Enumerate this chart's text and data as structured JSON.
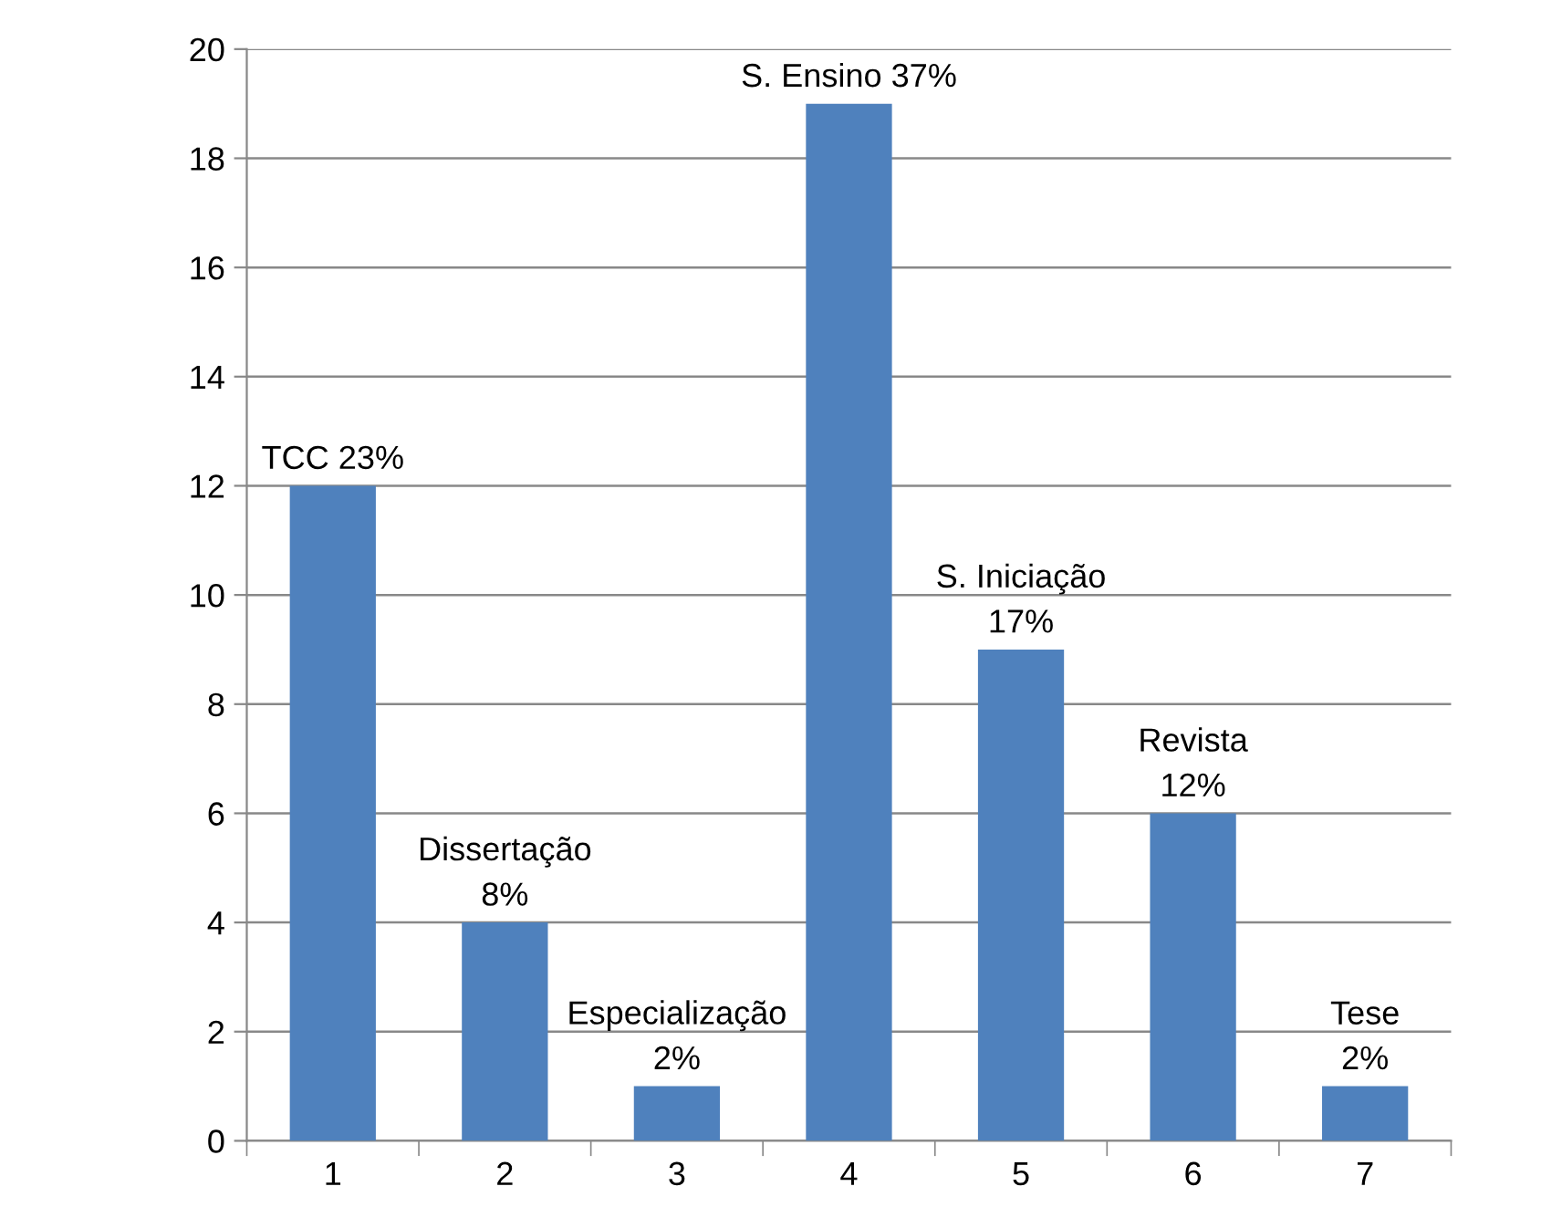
{
  "chart_data": {
    "type": "bar",
    "categories": [
      "1",
      "2",
      "3",
      "4",
      "5",
      "6",
      "7"
    ],
    "values": [
      12,
      4,
      1,
      19,
      9,
      6,
      1
    ],
    "color": "#4f81bd",
    "ylim": [
      0,
      20
    ],
    "yticks": [
      0,
      2,
      4,
      6,
      8,
      10,
      12,
      14,
      16,
      18,
      20
    ],
    "grid": "y",
    "annotations": [
      {
        "text": "TCC 23%",
        "x": "1",
        "y": 12
      },
      {
        "text": "Dissertação\n8%",
        "x": "2",
        "y": 4
      },
      {
        "text": "Especialização\n2%",
        "x": "3",
        "y": 1
      },
      {
        "text": "S. Ensino 37%",
        "x": "4",
        "y": 19
      },
      {
        "text": "S. Iniciação\n17%",
        "x": "5",
        "y": 9
      },
      {
        "text": "Revista\n12%",
        "x": "6",
        "y": 6
      },
      {
        "text": "Tese\n2%",
        "x": "7",
        "y": 1
      }
    ]
  }
}
